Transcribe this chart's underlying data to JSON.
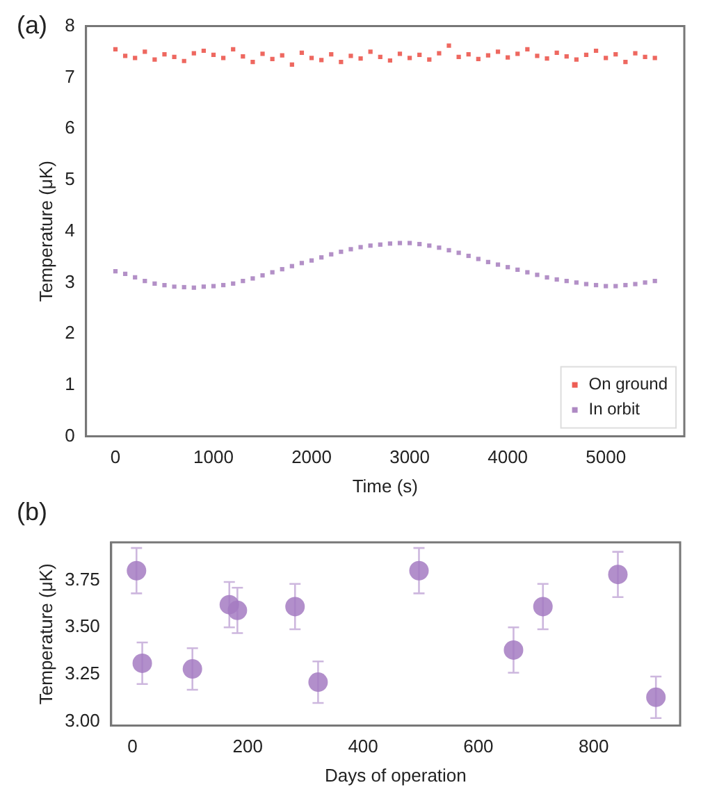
{
  "chart_data": [
    {
      "type": "scatter",
      "annotations": [
        "(a)"
      ],
      "xlabel": "Time (s)",
      "ylabel": "Temperature (μK)",
      "xlim": [
        -300,
        5800
      ],
      "xticks": [
        0,
        1000,
        2000,
        3000,
        4000,
        5000
      ],
      "ylim": [
        0,
        8
      ],
      "yticks": [
        0,
        1,
        2,
        3,
        4,
        5,
        6,
        7,
        8
      ],
      "marker": "square",
      "legend": "bottom right",
      "grid": false,
      "series": [
        {
          "name": "On ground",
          "color": "#e8362b",
          "x": [
            0,
            100,
            200,
            300,
            400,
            500,
            600,
            700,
            800,
            900,
            1000,
            1100,
            1200,
            1300,
            1400,
            1500,
            1600,
            1700,
            1800,
            1900,
            2000,
            2100,
            2200,
            2300,
            2400,
            2500,
            2600,
            2700,
            2800,
            2900,
            3000,
            3100,
            3200,
            3300,
            3400,
            3500,
            3600,
            3700,
            3800,
            3900,
            4000,
            4100,
            4200,
            4300,
            4400,
            4500,
            4600,
            4700,
            4800,
            4900,
            5000,
            5100,
            5200,
            5300,
            5400,
            5500
          ],
          "values": [
            7.55,
            7.42,
            7.38,
            7.5,
            7.35,
            7.45,
            7.4,
            7.32,
            7.47,
            7.52,
            7.44,
            7.38,
            7.55,
            7.41,
            7.3,
            7.46,
            7.36,
            7.43,
            7.25,
            7.48,
            7.38,
            7.34,
            7.45,
            7.3,
            7.42,
            7.37,
            7.5,
            7.4,
            7.33,
            7.46,
            7.38,
            7.44,
            7.35,
            7.47,
            7.62,
            7.4,
            7.45,
            7.36,
            7.43,
            7.5,
            7.39,
            7.46,
            7.55,
            7.42,
            7.37,
            7.48,
            7.41,
            7.35,
            7.44,
            7.52,
            7.38,
            7.45,
            7.3,
            7.47,
            7.4,
            7.38
          ]
        },
        {
          "name": "In orbit",
          "color": "#9a6bb4",
          "x": [
            0,
            100,
            200,
            300,
            400,
            500,
            600,
            700,
            800,
            900,
            1000,
            1100,
            1200,
            1300,
            1400,
            1500,
            1600,
            1700,
            1800,
            1900,
            2000,
            2100,
            2200,
            2300,
            2400,
            2500,
            2600,
            2700,
            2800,
            2900,
            3000,
            3100,
            3200,
            3300,
            3400,
            3500,
            3600,
            3700,
            3800,
            3900,
            4000,
            4100,
            4200,
            4300,
            4400,
            4500,
            4600,
            4700,
            4800,
            4900,
            5000,
            5100,
            5200,
            5300,
            5400,
            5500
          ],
          "values": [
            3.22,
            3.17,
            3.1,
            3.03,
            2.98,
            2.95,
            2.92,
            2.91,
            2.9,
            2.92,
            2.93,
            2.95,
            2.98,
            3.03,
            3.08,
            3.14,
            3.2,
            3.26,
            3.32,
            3.38,
            3.43,
            3.49,
            3.55,
            3.6,
            3.65,
            3.69,
            3.72,
            3.74,
            3.76,
            3.77,
            3.77,
            3.75,
            3.72,
            3.68,
            3.63,
            3.58,
            3.52,
            3.46,
            3.4,
            3.35,
            3.3,
            3.25,
            3.2,
            3.15,
            3.1,
            3.06,
            3.03,
            3.0,
            2.97,
            2.95,
            2.93,
            2.93,
            2.95,
            2.97,
            3.0,
            3.03
          ]
        }
      ]
    },
    {
      "type": "scatter",
      "annotations": [
        "(b)"
      ],
      "xlabel": "Days of operation",
      "ylabel": "Temperature (μK)",
      "xlim": [
        -37,
        950
      ],
      "xticks": [
        0,
        200,
        400,
        600,
        800
      ],
      "ylim": [
        2.98,
        3.95
      ],
      "yticks": [
        {
          "value": 3,
          "label": "3.00"
        },
        {
          "value": 3.25,
          "label": "3.25"
        },
        {
          "value": 3.5,
          "label": "3.50"
        },
        {
          "value": 3.75,
          "label": "3.75"
        }
      ],
      "marker": "circle",
      "grid": false,
      "series": [
        {
          "color": "#a47bc2",
          "x": [
            7,
            17,
            104,
            168,
            182,
            282,
            322,
            497,
            661,
            712,
            842,
            908
          ],
          "values": [
            3.8,
            3.31,
            3.28,
            3.62,
            3.59,
            3.61,
            3.21,
            3.8,
            3.38,
            3.61,
            3.78,
            3.13
          ],
          "errors": [
            0.12,
            0.11,
            0.11,
            0.12,
            0.12,
            0.12,
            0.11,
            0.12,
            0.12,
            0.12,
            0.12,
            0.11
          ]
        }
      ]
    }
  ]
}
